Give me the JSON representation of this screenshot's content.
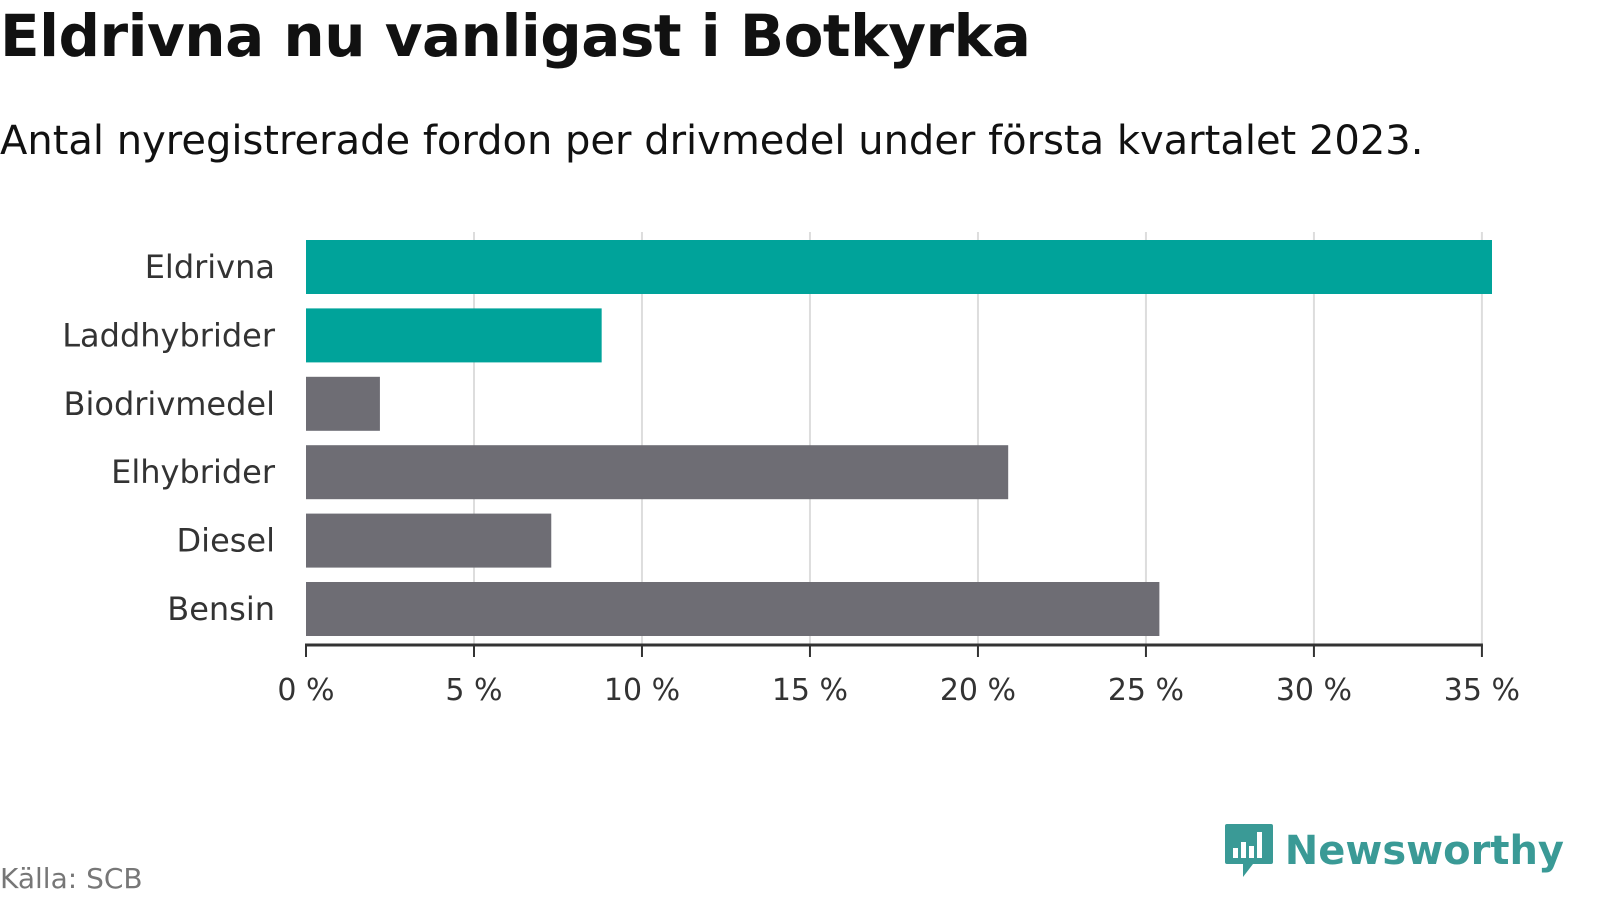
{
  "title": "Eldrivna nu vanligast i Botkyrka",
  "subtitle": "Antal nyregistrerade fordon per drivmedel under första kvartalet 2023.",
  "source": "Källa: SCB",
  "brand": {
    "name": "Newsworthy",
    "color": "#3a9a96"
  },
  "colors": {
    "highlight": "#00a39a",
    "default": "#6e6d74",
    "grid": "#dddddd",
    "axis": "#333333"
  },
  "chart_data": {
    "type": "bar",
    "orientation": "horizontal",
    "categories": [
      "Eldrivna",
      "Laddhybrider",
      "Biodrivmedel",
      "Elhybrider",
      "Diesel",
      "Bensin"
    ],
    "values": [
      35.3,
      8.8,
      2.2,
      20.9,
      7.3,
      25.4
    ],
    "highlighted": [
      true,
      true,
      false,
      false,
      false,
      false
    ],
    "xlim": [
      0,
      35.3
    ],
    "ticks": [
      0,
      5,
      10,
      15,
      20,
      25,
      30,
      35
    ],
    "tick_labels": [
      "0 %",
      "5 %",
      "10 %",
      "15 %",
      "20 %",
      "25 %",
      "30 %",
      "35 %"
    ],
    "grid": true
  }
}
